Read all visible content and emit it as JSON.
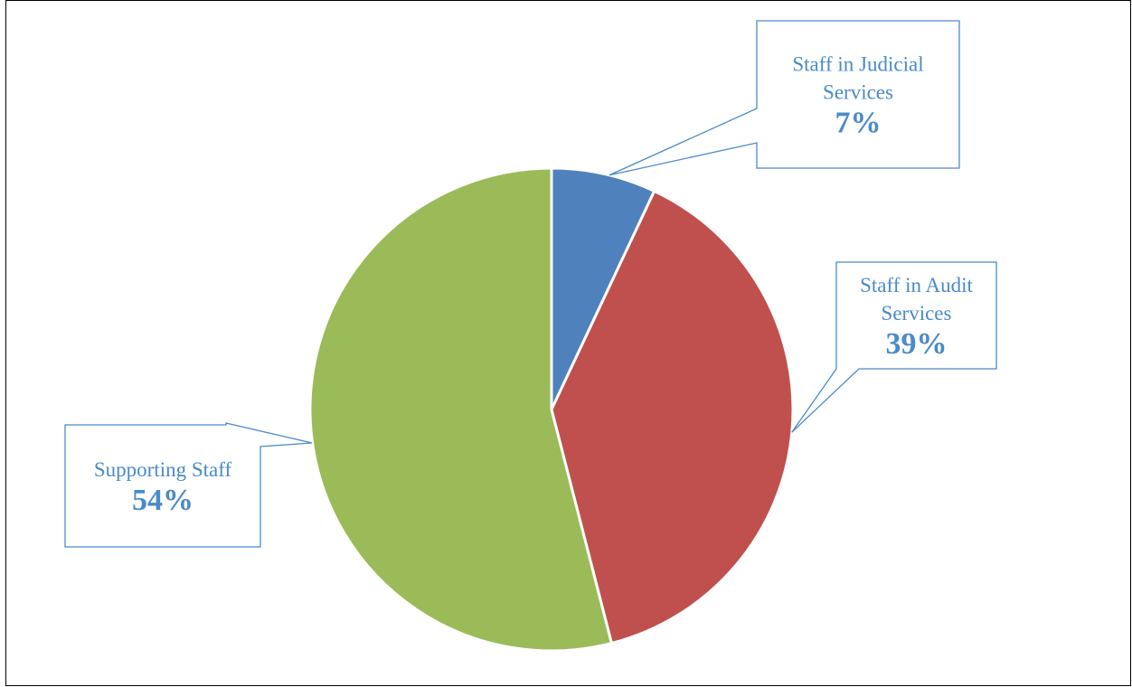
{
  "chart_data": {
    "type": "pie",
    "title": "",
    "slices": [
      {
        "label_lines": [
          "Staff in Judicial",
          "Services"
        ],
        "value": 7,
        "value_label": "7%",
        "color": "#4F81BD"
      },
      {
        "label_lines": [
          "Staff in Audit",
          "Services"
        ],
        "value": 39,
        "value_label": "39%",
        "color": "#C0504D"
      },
      {
        "label_lines": [
          "Supporting Staff"
        ],
        "value": 54,
        "value_label": "54%",
        "color": "#9BBB59"
      }
    ],
    "start_angle": "12 o'clock",
    "direction": "clockwise",
    "legend": "none",
    "data_labels": "callouts",
    "label_color": "#4A8BC9"
  }
}
